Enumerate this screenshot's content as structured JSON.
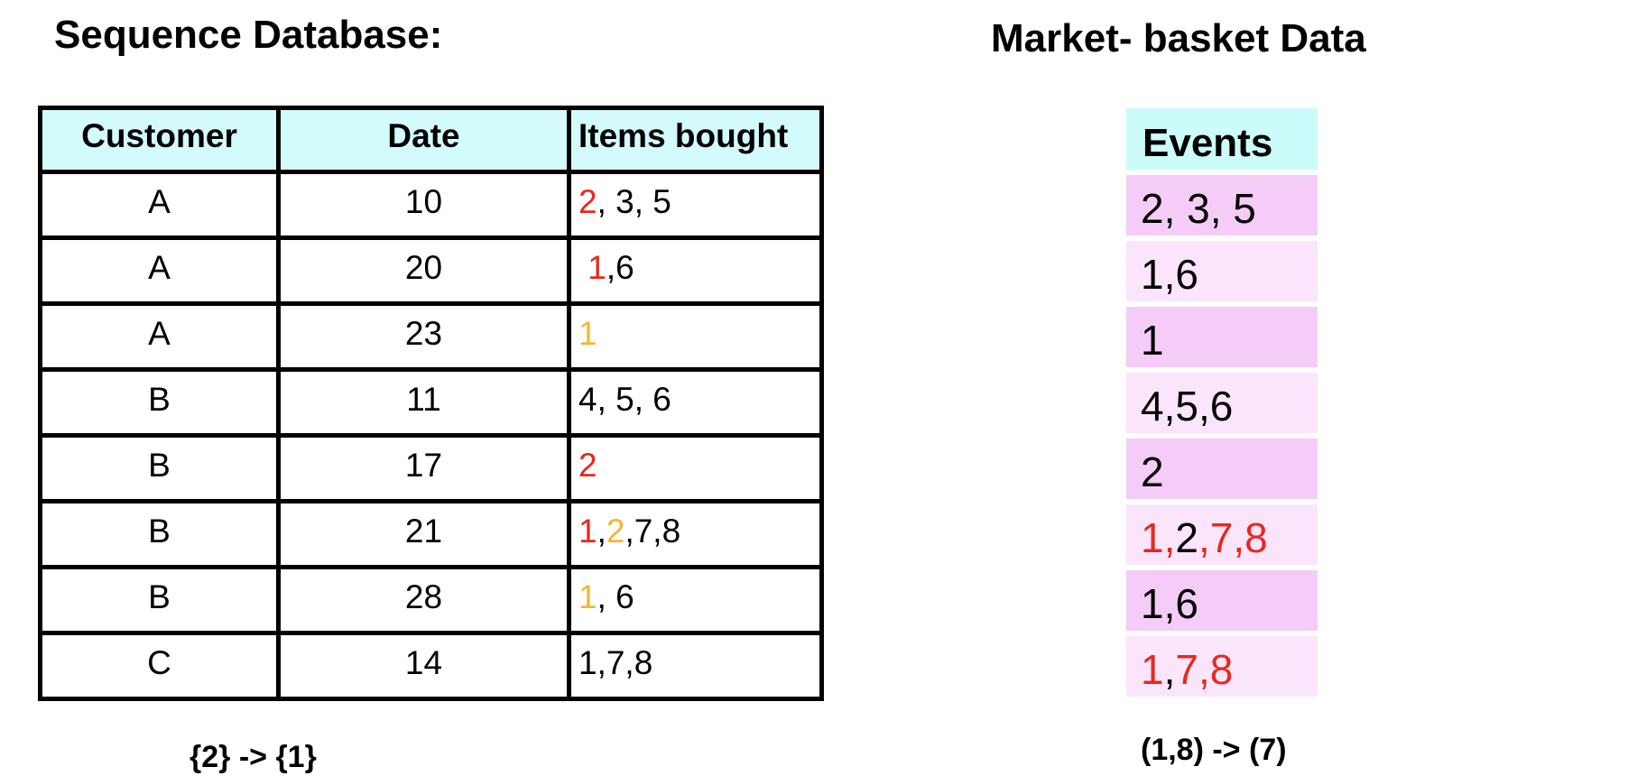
{
  "sequence_database": {
    "title": "Sequence Database:",
    "headers": {
      "customer": "Customer",
      "date": "Date",
      "items": "Items bought"
    },
    "rows": [
      {
        "customer": "A",
        "date": "10",
        "items": [
          {
            "t": "2",
            "c": "red"
          },
          {
            "t": ", 3, 5",
            "c": "blk"
          }
        ]
      },
      {
        "customer": "A",
        "date": "20",
        "items": [
          {
            "t": " 1",
            "c": "red"
          },
          {
            "t": ",6",
            "c": "blk"
          }
        ]
      },
      {
        "customer": "A",
        "date": "23",
        "items": [
          {
            "t": "1",
            "c": "yellow"
          }
        ]
      },
      {
        "customer": "B",
        "date": "11",
        "items": [
          {
            "t": "4, 5, 6",
            "c": "blk"
          }
        ]
      },
      {
        "customer": "B",
        "date": "17",
        "items": [
          {
            "t": "2",
            "c": "red"
          }
        ]
      },
      {
        "customer": "B",
        "date": "21",
        "items": [
          {
            "t": "1",
            "c": "red"
          },
          {
            "t": ",",
            "c": "blk"
          },
          {
            "t": "2",
            "c": "yellow"
          },
          {
            "t": ",7,8",
            "c": "blk"
          }
        ]
      },
      {
        "customer": "B",
        "date": "28",
        "items": [
          {
            "t": "1",
            "c": "yellow"
          },
          {
            "t": ", 6",
            "c": "blk"
          }
        ]
      },
      {
        "customer": "C",
        "date": "14",
        "items": [
          {
            "t": "1,7,8",
            "c": "blk"
          }
        ]
      }
    ],
    "rule": "{2} -> {1}"
  },
  "market_basket": {
    "title": "Market- basket Data",
    "header": "Events",
    "rows": [
      {
        "shade": "dark",
        "parts": [
          {
            "t": "2, 3, 5",
            "c": "blk"
          }
        ]
      },
      {
        "shade": "light",
        "parts": [
          {
            "t": "1,6",
            "c": "blk"
          }
        ]
      },
      {
        "shade": "dark",
        "parts": [
          {
            "t": "1",
            "c": "blk"
          }
        ]
      },
      {
        "shade": "light",
        "parts": [
          {
            "t": "4,5,6",
            "c": "blk"
          }
        ]
      },
      {
        "shade": "dark",
        "parts": [
          {
            "t": "2",
            "c": "blk"
          }
        ]
      },
      {
        "shade": "light",
        "parts": [
          {
            "t": "1,",
            "c": "red"
          },
          {
            "t": "2",
            "c": "blk"
          },
          {
            "t": ",7,8",
            "c": "red"
          }
        ]
      },
      {
        "shade": "dark",
        "parts": [
          {
            "t": "1,6",
            "c": "blk"
          }
        ]
      },
      {
        "shade": "light",
        "parts": [
          {
            "t": "1",
            "c": "red"
          },
          {
            "t": ",",
            "c": "blk"
          },
          {
            "t": "7,8",
            "c": "red"
          }
        ]
      }
    ],
    "rule": "(1,8) -> (7)"
  },
  "colors": {
    "red": "#e8281f",
    "yellow": "#f3b632",
    "header_cyan": "#d3fbfb",
    "pink_dark": "#f4ccf7",
    "pink_light": "#fbe5fb"
  }
}
